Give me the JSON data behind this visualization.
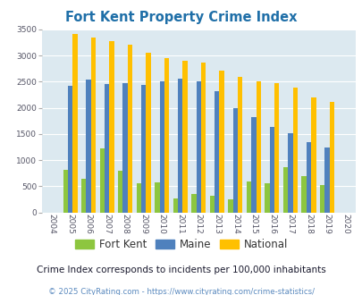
{
  "title": "Fort Kent Property Crime Index",
  "years": [
    2004,
    2005,
    2006,
    2007,
    2008,
    2009,
    2010,
    2011,
    2012,
    2013,
    2014,
    2015,
    2016,
    2017,
    2018,
    2019,
    2020
  ],
  "fort_kent": [
    0,
    820,
    640,
    1220,
    800,
    560,
    570,
    270,
    350,
    310,
    250,
    600,
    560,
    870,
    690,
    520,
    0
  ],
  "maine": [
    0,
    2430,
    2540,
    2460,
    2480,
    2440,
    2500,
    2560,
    2510,
    2320,
    2000,
    1830,
    1640,
    1510,
    1350,
    1240,
    0
  ],
  "national": [
    0,
    3420,
    3350,
    3270,
    3210,
    3050,
    2950,
    2900,
    2860,
    2720,
    2590,
    2500,
    2480,
    2380,
    2200,
    2110,
    0
  ],
  "fort_kent_color": "#8dc63f",
  "maine_color": "#4f81bd",
  "national_color": "#ffc000",
  "bg_color": "#dce9f0",
  "ylim": [
    0,
    3500
  ],
  "yticks": [
    0,
    500,
    1000,
    1500,
    2000,
    2500,
    3000,
    3500
  ],
  "subtitle": "Crime Index corresponds to incidents per 100,000 inhabitants",
  "footer": "© 2025 CityRating.com - https://www.cityrating.com/crime-statistics/",
  "title_color": "#1f6fa8",
  "subtitle_color": "#1a1a2e",
  "footer_color": "#5b8abf"
}
